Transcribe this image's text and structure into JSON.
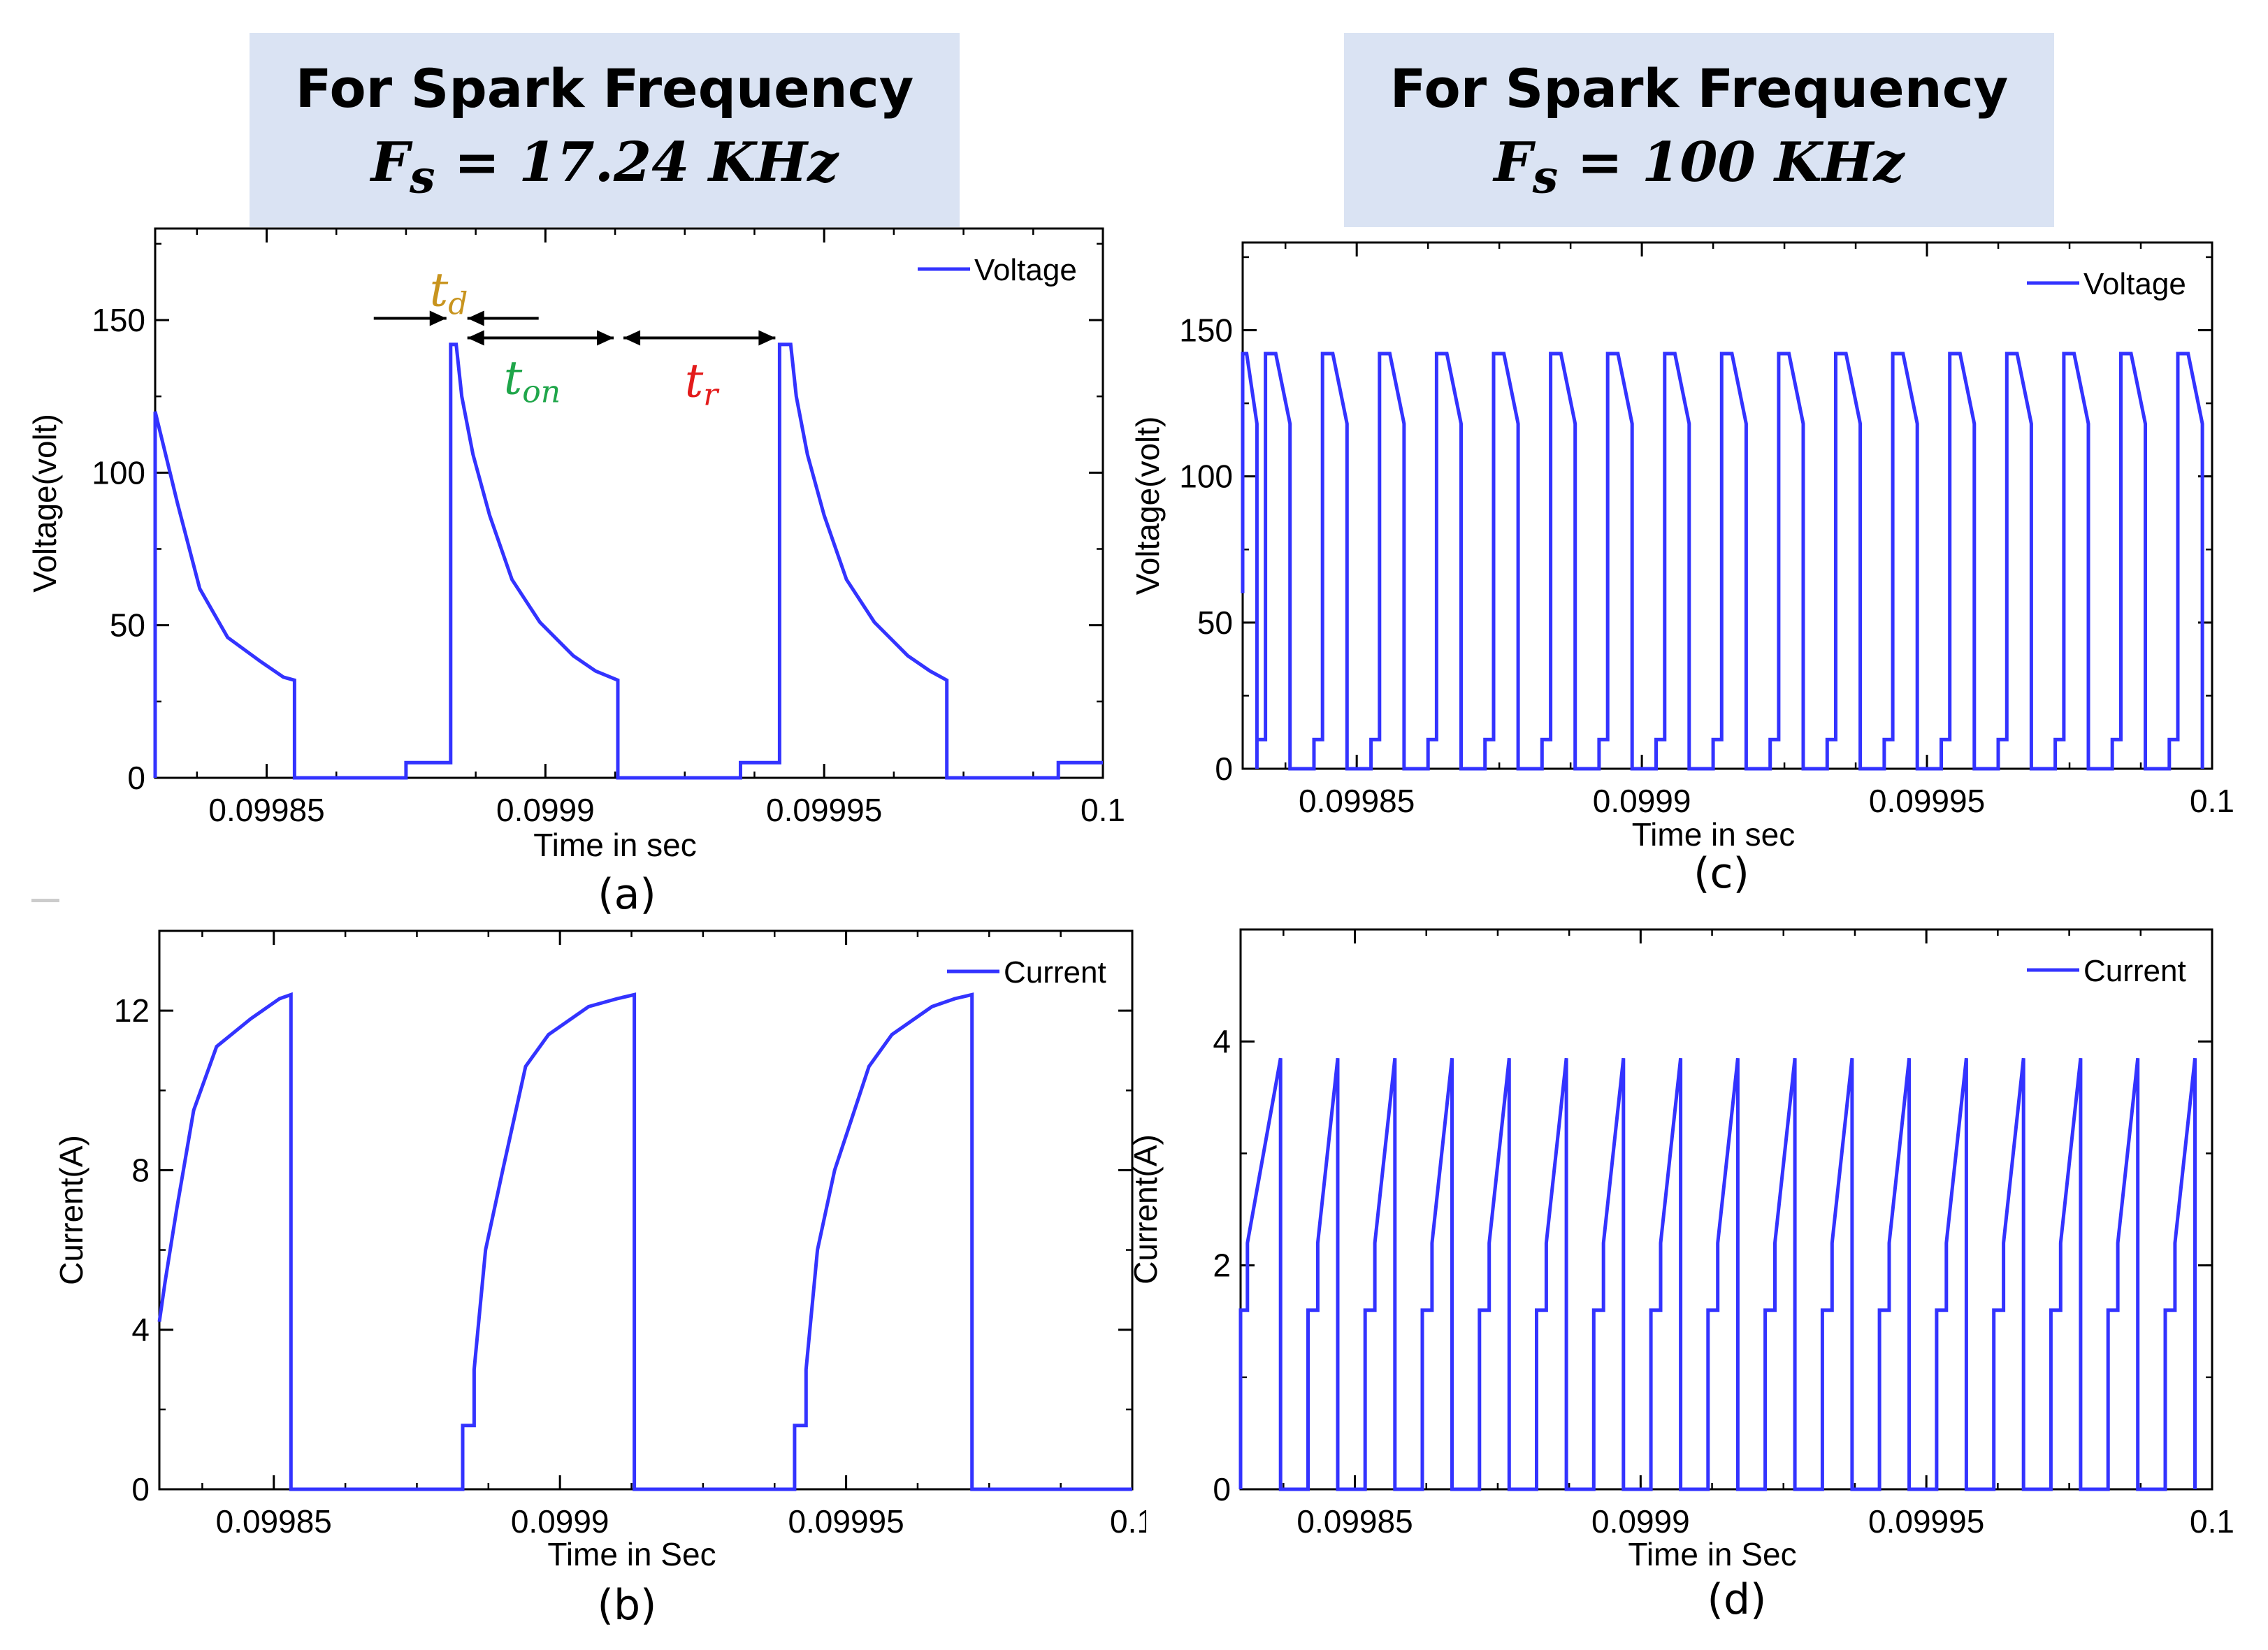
{
  "headers": [
    {
      "id": "hdr-a",
      "line1": "For Spark Frequency",
      "symbol": "F",
      "sub": "s",
      "eq": "= 17.24 KHz"
    },
    {
      "id": "hdr-c",
      "line1": "For Spark Frequency",
      "symbol": "F",
      "sub": "s",
      "eq": "= 100 KHz"
    }
  ],
  "annotations": {
    "td": {
      "base": "t",
      "sub": "d",
      "color": "#c8941e"
    },
    "ton": {
      "base": "t",
      "sub": "on",
      "color": "#1fa64a"
    },
    "tr": {
      "base": "t",
      "sub": "r",
      "color": "#e31b1b"
    }
  },
  "chart_data": [
    {
      "id": "a",
      "type": "line",
      "caption": "(a)",
      "xlabel": "Time in sec",
      "ylabel": "Voltage(volt)",
      "xlim": [
        0.09983,
        0.1
      ],
      "ylim": [
        0,
        180
      ],
      "xticks": [
        0.09985,
        0.0999,
        0.09995,
        0.1
      ],
      "xtick_labels": [
        "0.09985",
        "0.0999",
        "0.09995",
        "0.1"
      ],
      "yticks": [
        0,
        50,
        100,
        150
      ],
      "ytick_labels": [
        "0",
        "50",
        "100",
        "150"
      ],
      "legend": "Voltage",
      "color": "#3333ff",
      "series": [
        {
          "name": "Voltage",
          "x": [
            0.09983,
            0.09983,
            0.099832,
            0.099834,
            0.099838,
            0.099843,
            0.099849,
            0.099853,
            0.099855,
            0.099855,
            0.099875,
            0.099875,
            0.099883,
            0.099883,
            0.099884,
            0.099885,
            0.099887,
            0.09989,
            0.099894,
            0.099899,
            0.099905,
            0.099909,
            0.099913,
            0.099913,
            0.099935,
            0.099935,
            0.099942,
            0.099942,
            0.099944,
            0.099945,
            0.099947,
            0.09995,
            0.099954,
            0.099959,
            0.099965,
            0.099969,
            0.099972,
            0.099972,
            0.099992,
            0.099992,
            0.1
          ],
          "y": [
            0,
            120,
            105,
            90,
            62,
            46,
            38,
            33,
            32,
            0,
            0,
            5,
            5,
            142,
            142,
            125,
            106,
            86,
            65,
            51,
            40,
            35,
            32,
            0,
            0,
            5,
            5,
            142,
            142,
            125,
            106,
            86,
            65,
            51,
            40,
            35,
            32,
            0,
            0,
            5,
            5
          ]
        }
      ]
    },
    {
      "id": "b",
      "type": "line",
      "caption": "(b)",
      "xlabel": "Time in Sec",
      "ylabel": "Current(A)",
      "xlim": [
        0.09983,
        0.1
      ],
      "ylim": [
        0,
        14
      ],
      "xticks": [
        0.09985,
        0.0999,
        0.09995,
        0.1
      ],
      "xtick_labels": [
        "0.09985",
        "0.0999",
        "0.09995",
        "0.1"
      ],
      "yticks": [
        0,
        4,
        8,
        12
      ],
      "ytick_labels": [
        "0",
        "4",
        "8",
        "12"
      ],
      "legend": "Current",
      "color": "#3333ff",
      "series": [
        {
          "name": "Current",
          "x": [
            0.09983,
            0.099831,
            0.099833,
            0.099836,
            0.09984,
            0.099846,
            0.099851,
            0.099853,
            0.099853,
            0.099883,
            0.099883,
            0.099885,
            0.099885,
            0.099887,
            0.09989,
            0.099892,
            0.099894,
            0.099898,
            0.099905,
            0.09991,
            0.099913,
            0.099913,
            0.099941,
            0.099941,
            0.099943,
            0.099943,
            0.099945,
            0.099948,
            0.099951,
            0.099954,
            0.099958,
            0.099965,
            0.099969,
            0.099972,
            0.099972,
            0.1
          ],
          "y": [
            4.2,
            5.2,
            7,
            9.5,
            11.1,
            11.8,
            12.3,
            12.4,
            0,
            0,
            1.6,
            1.6,
            3,
            6,
            8,
            9.3,
            10.6,
            11.4,
            12.1,
            12.3,
            12.4,
            0,
            0,
            1.6,
            1.6,
            3,
            6,
            8,
            9.3,
            10.6,
            11.4,
            12.1,
            12.3,
            12.4,
            0,
            0
          ]
        }
      ]
    },
    {
      "id": "c",
      "type": "line",
      "caption": "(c)",
      "xlabel": "Time in sec",
      "ylabel": "Voltage(volt)",
      "xlim": [
        0.09983,
        0.1
      ],
      "ylim": [
        0,
        180
      ],
      "xticks": [
        0.09985,
        0.0999,
        0.09995,
        0.1
      ],
      "xtick_labels": [
        "0.09985",
        "0.0999",
        "0.09995",
        "0.1"
      ],
      "yticks": [
        0,
        50,
        100,
        150
      ],
      "ytick_labels": [
        "0",
        "50",
        "100",
        "150"
      ],
      "legend": "Voltage",
      "color": "#3333ff",
      "waveform": {
        "period": 1e-05,
        "first_rise": 0.099834,
        "on_duration": 3e-06,
        "drop_time": 4.7e-06,
        "high": 142,
        "end_value": 118,
        "rest": 10,
        "rest_start": 6.6e-06
      },
      "series": [
        {
          "name": "Voltage"
        }
      ]
    },
    {
      "id": "d",
      "type": "line",
      "caption": "(d)",
      "xlabel": "Time in Sec",
      "ylabel": "Current(A)",
      "xlim": [
        0.09983,
        0.1
      ],
      "ylim": [
        0,
        5
      ],
      "xticks": [
        0.09985,
        0.0999,
        0.09995,
        0.1
      ],
      "xtick_labels": [
        "0.09985",
        "0.0999",
        "0.09995",
        "0.1"
      ],
      "yticks": [
        0,
        2,
        4
      ],
      "ytick_labels": [
        "0",
        "2",
        "4"
      ],
      "legend": "Current",
      "color": "#3333ff",
      "waveform": {
        "period": 1e-05,
        "first_peak": 0.099837,
        "peak": 3.85,
        "step": 1.6
      },
      "series": [
        {
          "name": "Current"
        }
      ]
    }
  ]
}
